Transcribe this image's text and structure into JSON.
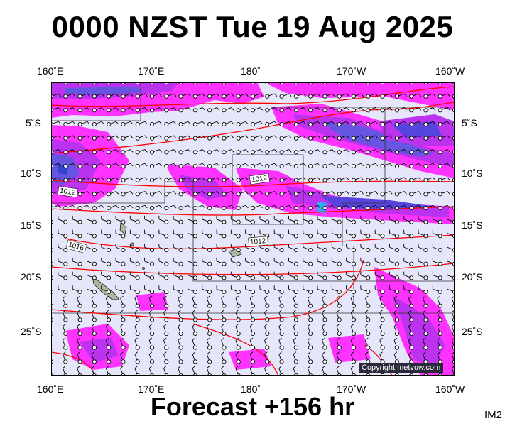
{
  "title": "0000 NZST Tue 19 Aug 2025",
  "footer": "Forecast +156 hr",
  "corner_code": "IM2",
  "copyright": "Copyright metvuw.com",
  "axes": {
    "top_lon": [
      "160˚E",
      "170˚E",
      "180˚",
      "170˚W",
      "160˚W"
    ],
    "bottom_lon": [
      "160˚E",
      "170˚E",
      "180˚",
      "170˚W",
      "160˚W"
    ],
    "left_lat": [
      "5˚S",
      "10˚S",
      "15˚S",
      "20˚S",
      "25˚S"
    ],
    "right_lat": [
      "5˚S",
      "10˚S",
      "15˚S",
      "20˚S",
      "25˚S"
    ]
  },
  "isobar_labels": [
    "1012",
    "1012",
    "1016",
    "1012"
  ],
  "colors": {
    "ocean": "#e6e6fa",
    "rain_light": "#ff33ff",
    "rain_medium": "#bb33ee",
    "rain_heavy": "#5544dd",
    "rain_extreme": "#33aaee",
    "isobar": "#ff0000",
    "land": "#a8b8a0"
  }
}
